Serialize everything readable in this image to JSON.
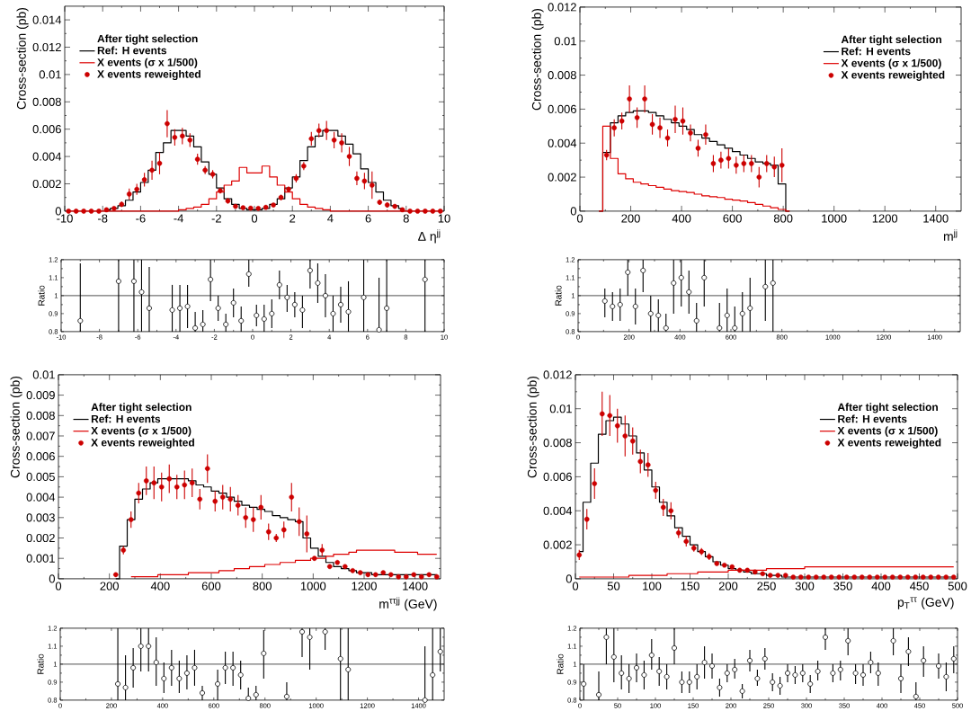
{
  "chart_data": [
    {
      "type": "step",
      "xlabel": "Δ η$^{jj}$",
      "ylabel": "Cross-section (pb)",
      "legend_title": "After tight selection",
      "legend": "top left",
      "xlim": [
        -10,
        10
      ],
      "ylim": [
        0,
        0.015
      ],
      "xticks": [
        -10,
        -8,
        -6,
        -4,
        -2,
        0,
        2,
        4,
        6,
        8,
        10
      ],
      "yticks": [
        0,
        0.002,
        0.004,
        0.006,
        0.008,
        0.01,
        0.012,
        0.014
      ],
      "x": [
        -9.8,
        -9.4,
        -9,
        -8.6,
        -8.2,
        -7.8,
        -7.4,
        -7,
        -6.6,
        -6.2,
        -5.8,
        -5.4,
        -5,
        -4.6,
        -4.2,
        -3.8,
        -3.4,
        -3,
        -2.6,
        -2.2,
        -1.8,
        -1.4,
        -1,
        -0.6,
        -0.2,
        0.2,
        0.6,
        1,
        1.4,
        1.8,
        2.2,
        2.6,
        3,
        3.4,
        3.8,
        4.2,
        4.6,
        5,
        5.4,
        5.8,
        6.2,
        6.6,
        7,
        7.4,
        7.8,
        8.2,
        8.6,
        9,
        9.4,
        9.8
      ],
      "series": [
        {
          "name": "Ref: H events",
          "color": "#000000",
          "type": "step",
          "values": [
            null,
            null,
            null,
            null,
            null,
            0.0001,
            0.0002,
            0.0004,
            0.0008,
            0.0014,
            0.0021,
            0.003,
            0.0043,
            0.005,
            0.0059,
            0.0059,
            0.0055,
            0.0047,
            0.0036,
            0.0027,
            0.0017,
            0.0009,
            0.0005,
            0.0002,
            0.0001,
            0.0001,
            0.0002,
            0.0005,
            0.0009,
            0.0017,
            0.0025,
            0.0037,
            0.0047,
            0.0055,
            0.0059,
            0.0059,
            0.0055,
            0.0049,
            0.0042,
            0.0031,
            0.0021,
            0.0014,
            0.0008,
            0.0004,
            0.0002,
            null,
            null,
            null,
            null,
            null
          ]
        },
        {
          "name": "X events (σ x 1/500)",
          "color": "#dd0000",
          "type": "step",
          "values": [
            0,
            0,
            0,
            0,
            0,
            0,
            0,
            0,
            0,
            0,
            0,
            0,
            0,
            0,
            0,
            0.0001,
            0.0002,
            0.0003,
            0.0005,
            0.0009,
            0.0014,
            0.0019,
            0.0022,
            0.0032,
            0.0028,
            0.0028,
            0.0033,
            0.0025,
            0.0019,
            0.0014,
            0.0009,
            0.0005,
            0.0003,
            0.0002,
            0.0001,
            0,
            0,
            0,
            0,
            0,
            0,
            0,
            0,
            0,
            0,
            0,
            0,
            0,
            0,
            0
          ]
        },
        {
          "name": "X events reweighted",
          "color": "#cc0000",
          "type": "scatter",
          "marker": "circle",
          "values": [
            0,
            0,
            0,
            0,
            0,
            0.0001,
            0.0002,
            0.0005,
            0.00125,
            0.0016,
            0.0023,
            0.003,
            0.0035,
            0.0064,
            0.0054,
            0.0055,
            0.0052,
            0.0038,
            0.003,
            0.0027,
            0.0015,
            0.00075,
            0.00035,
            0.00025,
            0.00022,
            0.0002,
            0.00028,
            0.00045,
            0.001,
            0.0016,
            0.0024,
            0.0033,
            0.0053,
            0.0059,
            0.0059,
            0.0052,
            0.005,
            0.004,
            0.0024,
            0.0022,
            0.0019,
            0.00065,
            0.00045,
            0.00035,
            0.0001,
            0,
            0,
            0,
            0,
            0
          ],
          "errors": [
            null,
            null,
            null,
            null,
            null,
            null,
            0.0001,
            0.0002,
            0.0004,
            0.0004,
            0.0005,
            0.0007,
            0.0008,
            0.001,
            0.0006,
            0.0006,
            0.0005,
            0.0004,
            0.0003,
            0.0003,
            0.0002,
            0.0002,
            0.0001,
            0.0001,
            0.0001,
            0.0001,
            0.0001,
            0.0001,
            0.0002,
            0.0002,
            0.0003,
            0.0003,
            0.0005,
            0.0005,
            0.0007,
            0.0006,
            0.0007,
            0.0007,
            0.0005,
            0.0006,
            0.001,
            0.0002,
            0.0002,
            0.0001,
            null,
            null,
            null,
            null,
            null,
            null
          ]
        }
      ]
    },
    {
      "type": "step",
      "xlabel": "m$^{jj}$",
      "ylabel": "Cross-section (pb)",
      "legend_title": "After tight selection",
      "legend": "top right",
      "xlim": [
        0,
        1500
      ],
      "ylim": [
        0,
        0.012
      ],
      "xticks": [
        0,
        200,
        400,
        600,
        800,
        1000,
        1200,
        1400
      ],
      "yticks": [
        0,
        0.002,
        0.004,
        0.006,
        0.008,
        0.01,
        0.012
      ],
      "x": [
        75,
        105,
        135,
        165,
        195,
        225,
        255,
        285,
        315,
        345,
        375,
        405,
        435,
        465,
        495,
        525,
        555,
        585,
        615,
        645,
        675,
        705,
        735,
        765,
        795,
        825
      ],
      "series": [
        {
          "name": "Ref: H events",
          "color": "#000000",
          "type": "step",
          "values": [
            0,
            0.00345,
            0.0052,
            0.0056,
            0.0058,
            0.0059,
            0.0059,
            0.0058,
            0.0056,
            0.0054,
            0.0052,
            0.005,
            0.0048,
            0.0045,
            0.0043,
            0.0041,
            0.0039,
            0.0037,
            0.0035,
            0.0033,
            0.0031,
            0.0029,
            0.0028,
            0.0027,
            0.0016,
            0
          ]
        },
        {
          "name": "X events (σ x 1/500)",
          "color": "#dd0000",
          "type": "step",
          "values": [
            0,
            0.005,
            0.0031,
            0.0022,
            0.0019,
            0.0017,
            0.0016,
            0.0015,
            0.0014,
            0.0013,
            0.0012,
            0.00115,
            0.0011,
            0.001,
            0.0009,
            0.00085,
            0.0008,
            0.0007,
            0.00065,
            0.0006,
            0.0005,
            0.0004,
            0.0003,
            0.0002,
            0.0001,
            0
          ]
        },
        {
          "name": "X events reweighted",
          "color": "#cc0000",
          "type": "scatter",
          "marker": "circle",
          "x": [
            105,
            135,
            165,
            195,
            225,
            255,
            285,
            315,
            345,
            375,
            405,
            435,
            465,
            495,
            525,
            555,
            585,
            615,
            645,
            675,
            705,
            735,
            765,
            795
          ],
          "values": [
            0.0033,
            0.0049,
            0.0053,
            0.0066,
            0.0055,
            0.0066,
            0.0051,
            0.0049,
            0.0043,
            0.0054,
            0.0053,
            0.0046,
            0.0037,
            0.0045,
            0.0028,
            0.003,
            0.0031,
            0.0027,
            0.0028,
            0.0028,
            0.002,
            0.0028,
            0.0026,
            0.0027
          ],
          "errors": [
            0.0003,
            0.0005,
            0.0005,
            0.0008,
            0.0006,
            0.0008,
            0.0006,
            0.0006,
            0.0005,
            0.0008,
            0.0008,
            0.0005,
            0.0005,
            0.0006,
            0.0005,
            0.0005,
            0.0006,
            0.0005,
            0.0005,
            0.0005,
            0.0006,
            0.0005,
            0.0006,
            0.001
          ]
        }
      ]
    },
    {
      "type": "scatter",
      "ylabel": "Ratio",
      "marker": "circle",
      "color": "#000000",
      "xlim": [
        -10,
        10
      ],
      "ylim": [
        0.8,
        1.2
      ],
      "xticks": [
        -10,
        -8,
        -6,
        -4,
        -2,
        0,
        2,
        4,
        6,
        8,
        10
      ],
      "yticks": [
        0.8,
        0.9,
        1,
        1.1,
        1.2
      ],
      "ref_lines": [
        {
          "axis": "y",
          "value": 1
        }
      ],
      "x": [
        -9,
        -7,
        -6.2,
        -5.8,
        -5.4,
        -4.2,
        -3.8,
        -3.4,
        -3,
        -2.6,
        -2.2,
        -1.8,
        -1.4,
        -1,
        -0.6,
        -0.2,
        0.2,
        0.6,
        1,
        1.4,
        1.8,
        2.2,
        2.6,
        3,
        3.4,
        3.8,
        4.2,
        4.6,
        5,
        5.8,
        6.6,
        7,
        9
      ],
      "values": [
        0.86,
        1.08,
        1.08,
        1.02,
        0.93,
        0.92,
        0.93,
        0.94,
        0.82,
        0.84,
        1.09,
        0.93,
        0.84,
        0.96,
        0.86,
        1.12,
        0.89,
        0.87,
        0.9,
        1.06,
        0.99,
        0.95,
        0.92,
        1.14,
        1.07,
        1.0,
        0.9,
        0.95,
        0.91,
        0.99,
        0.81,
        0.93,
        1.09
      ],
      "errors": [
        [
          0.8,
          1.18
        ],
        [
          0.8,
          1.2
        ],
        [
          0.8,
          1.2
        ],
        [
          0.8,
          1.2
        ],
        [
          0.8,
          1.16
        ],
        [
          0.8,
          1.06
        ],
        [
          0.8,
          1.06
        ],
        [
          0.82,
          1.06
        ],
        [
          0.8,
          0.91
        ],
        [
          0.8,
          0.92
        ],
        [
          0.97,
          1.2
        ],
        [
          0.86,
          1.0
        ],
        [
          0.8,
          0.9
        ],
        [
          0.88,
          1.04
        ],
        [
          0.8,
          0.94
        ],
        [
          1.05,
          1.2
        ],
        [
          0.83,
          0.95
        ],
        [
          0.8,
          0.95
        ],
        [
          0.82,
          0.98
        ],
        [
          0.98,
          1.14
        ],
        [
          0.91,
          1.06
        ],
        [
          0.88,
          1.02
        ],
        [
          0.82,
          1.0
        ],
        [
          1.04,
          1.2
        ],
        [
          0.96,
          1.18
        ],
        [
          0.88,
          1.12
        ],
        [
          0.8,
          1.0
        ],
        [
          0.85,
          1.05
        ],
        [
          0.8,
          1.08
        ],
        [
          0.8,
          1.2
        ],
        [
          0.8,
          1.1
        ],
        [
          0.8,
          1.2
        ],
        [
          0.8,
          1.2
        ]
      ]
    },
    {
      "type": "scatter",
      "ylabel": "Ratio",
      "marker": "circle",
      "color": "#000000",
      "xlim": [
        0,
        1500
      ],
      "ylim": [
        0.8,
        1.2
      ],
      "xticks": [
        0,
        200,
        400,
        600,
        800,
        1000,
        1200,
        1400
      ],
      "yticks": [
        0.8,
        0.9,
        1,
        1.1,
        1.2
      ],
      "ref_lines": [
        {
          "axis": "y",
          "value": 1
        }
      ],
      "x": [
        105,
        135,
        165,
        195,
        225,
        255,
        285,
        315,
        345,
        375,
        405,
        435,
        465,
        495,
        555,
        585,
        615,
        645,
        675,
        735,
        765
      ],
      "values": [
        0.97,
        0.94,
        0.95,
        1.13,
        0.94,
        1.14,
        0.9,
        0.89,
        0.82,
        1.07,
        1.1,
        1.02,
        0.86,
        1.1,
        0.82,
        0.89,
        0.82,
        0.9,
        0.93,
        1.05,
        1.07
      ],
      "errors": [
        [
          0.88,
          1.04
        ],
        [
          0.86,
          1.02
        ],
        [
          0.86,
          1.04
        ],
        [
          1.0,
          1.2
        ],
        [
          0.84,
          1.04
        ],
        [
          1.02,
          1.2
        ],
        [
          0.8,
          1.0
        ],
        [
          0.8,
          0.98
        ],
        [
          0.8,
          0.9
        ],
        [
          0.9,
          1.2
        ],
        [
          0.94,
          1.2
        ],
        [
          0.9,
          1.14
        ],
        [
          0.8,
          0.96
        ],
        [
          0.94,
          1.2
        ],
        [
          0.8,
          0.96
        ],
        [
          0.8,
          1.04
        ],
        [
          0.8,
          0.94
        ],
        [
          0.8,
          1.02
        ],
        [
          0.8,
          1.1
        ],
        [
          0.86,
          1.2
        ],
        [
          0.8,
          1.2
        ]
      ]
    },
    {
      "type": "step",
      "xlabel": "m$^{ττjj}$ (GeV)",
      "ylabel": "Cross-section (pb)",
      "legend_title": "After tight selection",
      "legend": "top left",
      "xlim": [
        0,
        1500
      ],
      "ylim": [
        0,
        0.01
      ],
      "xticks": [
        0,
        200,
        400,
        600,
        800,
        1000,
        1200,
        1400
      ],
      "yticks": [
        0,
        0.001,
        0.002,
        0.003,
        0.004,
        0.005,
        0.006,
        0.007,
        0.008,
        0.009,
        0.01
      ],
      "x": [
        225,
        255,
        285,
        315,
        345,
        375,
        405,
        435,
        465,
        495,
        525,
        555,
        585,
        615,
        645,
        675,
        705,
        735,
        765,
        795,
        825,
        855,
        885,
        915,
        945,
        975,
        1005,
        1035,
        1065,
        1095,
        1125,
        1155,
        1185,
        1215,
        1245,
        1275,
        1305,
        1335,
        1365,
        1395,
        1425,
        1455,
        1485
      ],
      "series": [
        {
          "name": "Ref: H events",
          "color": "#000000",
          "type": "step",
          "values": [
            0,
            0.0016,
            0.0029,
            0.0039,
            0.0044,
            0.0047,
            0.0049,
            0.0049,
            0.0049,
            0.0049,
            0.0048,
            0.0046,
            0.0045,
            0.0043,
            0.0042,
            0.004,
            0.0038,
            0.0036,
            0.0035,
            0.0034,
            0.0033,
            0.0031,
            0.003,
            0.0029,
            0.0028,
            0.002,
            0.0015,
            0.0011,
            0.0008,
            0.0006,
            0.0005,
            0.0004,
            0.0003,
            0.0003,
            0.0002,
            0.0002,
            0.0002,
            0.0002,
            0.0002,
            0.0002,
            0.0002,
            0.0002,
            0.0002
          ]
        },
        {
          "name": "X events (σ x 1/500)",
          "color": "#dd0000",
          "type": "step",
          "values": [
            null,
            null,
            0.0001,
            0.0001,
            0.0001,
            0.0001,
            0.0002,
            0.0002,
            0.0002,
            0.0002,
            0.0003,
            0.0003,
            0.0003,
            0.0003,
            0.0004,
            0.0004,
            0.0005,
            0.0005,
            0.0006,
            0.0006,
            0.0007,
            0.0007,
            0.0008,
            0.0008,
            0.0009,
            0.0009,
            0.001,
            0.001,
            0.0011,
            0.0012,
            0.0012,
            0.0013,
            0.0014,
            0.0014,
            0.0014,
            0.0014,
            0.0014,
            0.0013,
            0.0013,
            0.0013,
            0.0012,
            0.0012,
            0.0012
          ]
        },
        {
          "name": "X events reweighted",
          "color": "#cc0000",
          "type": "scatter",
          "marker": "circle",
          "values": [
            0.0002,
            0.0014,
            0.0029,
            0.0042,
            0.0048,
            0.0047,
            0.0045,
            0.0049,
            0.0045,
            0.0046,
            0.0047,
            0.0039,
            0.0054,
            0.0038,
            0.004,
            0.0039,
            0.0036,
            0.003,
            0.0029,
            0.0035,
            0.0023,
            0.002,
            0.0024,
            0.004,
            0.0028,
            0.0022,
            0.001,
            0.0014,
            0.0006,
            0.0008,
            0.0006,
            0.0004,
            0.0003,
            0.0002,
            0.0002,
            0.0003,
            0.0002,
            0.0001,
            0.0001,
            0.0002,
            0.0001,
            0.0002,
            0.0001
          ],
          "errors": [
            0.0001,
            0.0002,
            0.0004,
            0.0005,
            0.0007,
            0.0008,
            0.0007,
            0.0007,
            0.0006,
            0.0007,
            0.0007,
            0.0005,
            0.0007,
            0.0005,
            0.0006,
            0.0006,
            0.0005,
            0.0005,
            0.0006,
            0.0006,
            0.0004,
            0.0002,
            0.0004,
            0.0007,
            0.0007,
            0.0009,
            0.0001,
            0.0003,
            0.0001,
            0.0001,
            0.0001,
            null,
            null,
            null,
            null,
            null,
            null,
            null,
            null,
            null,
            null,
            null,
            null
          ]
        }
      ]
    },
    {
      "type": "step",
      "xlabel": "p$_{T}$$^{ττ}$ (GeV)",
      "ylabel": "Cross-section (pb)",
      "legend_title": "After tight selection",
      "legend": "top right",
      "xlim": [
        0,
        500
      ],
      "ylim": [
        0,
        0.012
      ],
      "xticks": [
        0,
        50,
        100,
        150,
        200,
        250,
        300,
        350,
        400,
        450,
        500
      ],
      "yticks": [
        0,
        0.002,
        0.004,
        0.006,
        0.008,
        0.01,
        0.012
      ],
      "x": [
        5,
        15,
        25,
        35,
        45,
        55,
        65,
        75,
        85,
        95,
        105,
        115,
        125,
        135,
        145,
        155,
        165,
        175,
        185,
        195,
        205,
        215,
        225,
        235,
        245,
        255,
        265,
        275,
        285,
        295,
        305,
        315,
        325,
        335,
        345,
        355,
        365,
        375,
        385,
        395,
        405,
        415,
        425,
        435,
        445,
        455,
        465,
        475,
        485,
        495
      ],
      "series": [
        {
          "name": "Ref: H events",
          "color": "#000000",
          "type": "step",
          "values": [
            0.0016,
            0.0045,
            0.0068,
            0.0085,
            0.0093,
            0.0095,
            0.0091,
            0.0084,
            0.0074,
            0.0064,
            0.0054,
            0.0045,
            0.0037,
            0.003,
            0.0025,
            0.002,
            0.0016,
            0.0013,
            0.001,
            0.0008,
            0.0006,
            0.0005,
            0.0004,
            0.0003,
            0.0003,
            0.0002,
            0.0002,
            0.0001,
            0.0001,
            0.0001,
            0.0001,
            0.0001,
            0.0001,
            0.0001,
            0.0001,
            0.0001,
            0.0001,
            0.0001,
            0.0001,
            0.0001,
            0.0001,
            0.0001,
            0.0001,
            0.0001,
            0.0001,
            0.0001,
            0.0001,
            0.0001,
            0.0001,
            0.0001
          ]
        },
        {
          "name": "X events (σ x 1/500)",
          "color": "#dd0000",
          "type": "step",
          "values": [
            0.0001,
            0.0001,
            0.0001,
            0.0001,
            0.0001,
            0.0001,
            0.0001,
            0.0002,
            0.0002,
            0.0002,
            0.0002,
            0.0002,
            0.0003,
            0.0003,
            0.0003,
            0.0003,
            0.0004,
            0.0004,
            0.0004,
            0.0004,
            0.0005,
            0.0005,
            0.0005,
            0.0005,
            0.0005,
            0.0006,
            0.0006,
            0.0006,
            0.0006,
            0.0006,
            0.0007,
            0.0007,
            0.0007,
            0.0007,
            0.0007,
            0.0007,
            0.0007,
            0.0007,
            0.0007,
            0.0007,
            0.0007,
            0.0007,
            0.0007,
            0.0007,
            0.0007,
            0.0007,
            0.0007,
            0.0007,
            0.0007,
            0.0007
          ]
        },
        {
          "name": "X events reweighted",
          "color": "#cc0000",
          "type": "scatter",
          "marker": "circle",
          "values": [
            0.0014,
            0.0035,
            0.0056,
            0.0097,
            0.0096,
            0.009,
            0.0084,
            0.0081,
            0.0069,
            0.0067,
            0.0052,
            0.0042,
            0.004,
            0.0027,
            0.0022,
            0.0018,
            0.0016,
            0.0013,
            0.0009,
            0.0008,
            0.0007,
            0.0005,
            0.0005,
            0.0004,
            0.0003,
            0.0002,
            0.0002,
            0.0002,
            0.0001,
            0.0001,
            0.0001,
            0.0001,
            0.0001,
            0.0001,
            0.0001,
            0.0001,
            0.0001,
            0.0001,
            0.0001,
            0.0001,
            0.0001,
            0.0001,
            0.0001,
            0.0001,
            0.0001,
            0.0001,
            0.0001,
            0.0001,
            0.0001,
            0.0001
          ],
          "errors": [
            0.0003,
            0.0006,
            0.0009,
            0.0013,
            0.0012,
            0.001,
            0.0012,
            0.0008,
            0.0007,
            0.0007,
            0.0005,
            0.0005,
            0.0005,
            0.0003,
            0.0003,
            0.0002,
            0.0002,
            0.0002,
            0.0001,
            0.0001,
            null,
            null,
            null,
            null,
            null,
            null,
            null,
            null,
            null,
            null,
            null,
            null,
            null,
            null,
            null,
            null,
            null,
            null,
            null,
            null,
            null,
            null,
            null,
            null,
            null,
            null,
            null,
            null,
            null,
            null
          ]
        }
      ]
    },
    {
      "type": "scatter",
      "ylabel": "Ratio",
      "marker": "circle",
      "color": "#000000",
      "xlim": [
        0,
        1500
      ],
      "ylim": [
        0.8,
        1.2
      ],
      "xticks": [
        0,
        200,
        400,
        600,
        800,
        1000,
        1200,
        1400
      ],
      "yticks": [
        0.8,
        0.9,
        1,
        1.1,
        1.2
      ],
      "ref_lines": [
        {
          "axis": "y",
          "value": 1
        }
      ],
      "x": [
        225,
        255,
        285,
        315,
        345,
        375,
        405,
        435,
        465,
        495,
        525,
        555,
        615,
        645,
        675,
        705,
        735,
        765,
        795,
        885,
        945,
        975,
        1035,
        1095,
        1125,
        1425,
        1455,
        1485
      ],
      "values": [
        0.89,
        0.87,
        0.98,
        1.1,
        1.1,
        1.01,
        0.92,
        0.98,
        0.92,
        0.95,
        0.98,
        0.84,
        0.89,
        0.98,
        0.98,
        0.94,
        0.81,
        0.83,
        1.06,
        0.82,
        1.18,
        1.15,
        1.18,
        1.03,
        0.97,
        0.8,
        0.94,
        1.07
      ],
      "errors": [
        [
          0.8,
          1.2
        ],
        [
          0.8,
          1.05
        ],
        [
          0.87,
          1.09
        ],
        [
          0.96,
          1.2
        ],
        [
          0.96,
          1.2
        ],
        [
          0.88,
          1.15
        ],
        [
          0.84,
          1.01
        ],
        [
          0.88,
          1.08
        ],
        [
          0.84,
          1.02
        ],
        [
          0.86,
          1.05
        ],
        [
          0.88,
          1.08
        ],
        [
          0.8,
          0.88
        ],
        [
          0.8,
          0.97
        ],
        [
          0.89,
          1.07
        ],
        [
          0.88,
          1.07
        ],
        [
          0.86,
          1.02
        ],
        [
          0.8,
          0.87
        ],
        [
          0.8,
          0.88
        ],
        [
          0.92,
          1.19
        ],
        [
          0.8,
          0.9
        ],
        [
          1.04,
          1.2
        ],
        [
          0.97,
          1.2
        ],
        [
          1.08,
          1.2
        ],
        [
          0.8,
          1.2
        ],
        [
          0.8,
          1.2
        ],
        [
          0.8,
          1.1
        ],
        [
          0.8,
          1.2
        ],
        [
          0.96,
          1.2
        ]
      ]
    },
    {
      "type": "scatter",
      "ylabel": "Ratio",
      "marker": "circle",
      "color": "#000000",
      "xlim": [
        0,
        500
      ],
      "ylim": [
        0.8,
        1.2
      ],
      "xticks": [
        0,
        50,
        100,
        150,
        200,
        250,
        300,
        350,
        400,
        450,
        500
      ],
      "yticks": [
        0.8,
        0.9,
        1,
        1.1,
        1.2
      ],
      "ref_lines": [
        {
          "axis": "y",
          "value": 1
        }
      ],
      "x": [
        5,
        25,
        35,
        45,
        55,
        65,
        75,
        85,
        95,
        105,
        115,
        125,
        135,
        145,
        155,
        165,
        175,
        185,
        195,
        205,
        215,
        225,
        235,
        245,
        255,
        265,
        275,
        285,
        295,
        305,
        315,
        325,
        335,
        345,
        355,
        365,
        375,
        385,
        395,
        415,
        425,
        435,
        445,
        455,
        475,
        485,
        495
      ],
      "values": [
        0.89,
        0.83,
        1.15,
        1.04,
        0.95,
        0.92,
        0.98,
        0.94,
        1.05,
        0.96,
        0.93,
        1.09,
        0.9,
        0.9,
        0.93,
        1.01,
        0.99,
        0.87,
        0.95,
        0.97,
        0.85,
        1.02,
        0.92,
        1.03,
        0.9,
        0.88,
        0.95,
        0.94,
        0.95,
        0.89,
        0.96,
        1.15,
        0.95,
        0.97,
        1.13,
        0.95,
        0.94,
        1.01,
        0.95,
        1.13,
        0.92,
        1.07,
        0.82,
        1.02,
        0.99,
        0.93,
        1.03
      ],
      "errors": [
        [
          0.8,
          1.0
        ],
        [
          0.8,
          0.96
        ],
        [
          1.0,
          1.2
        ],
        [
          0.9,
          1.2
        ],
        [
          0.86,
          1.05
        ],
        [
          0.84,
          1.0
        ],
        [
          0.9,
          1.06
        ],
        [
          0.86,
          1.02
        ],
        [
          0.97,
          1.14
        ],
        [
          0.88,
          1.04
        ],
        [
          0.86,
          1.0
        ],
        [
          1.0,
          1.2
        ],
        [
          0.84,
          0.96
        ],
        [
          0.84,
          0.96
        ],
        [
          0.86,
          1.0
        ],
        [
          0.92,
          1.1
        ],
        [
          0.92,
          1.06
        ],
        [
          0.82,
          0.92
        ],
        [
          0.9,
          1.0
        ],
        [
          0.92,
          1.03
        ],
        [
          0.81,
          0.89
        ],
        [
          0.96,
          1.08
        ],
        [
          0.88,
          0.97
        ],
        [
          0.97,
          1.09
        ],
        [
          0.85,
          0.95
        ],
        [
          0.83,
          0.93
        ],
        [
          0.9,
          1.0
        ],
        [
          0.89,
          0.99
        ],
        [
          0.9,
          1.0
        ],
        [
          0.84,
          0.94
        ],
        [
          0.91,
          1.02
        ],
        [
          1.08,
          1.2
        ],
        [
          0.9,
          1.0
        ],
        [
          0.91,
          1.02
        ],
        [
          1.05,
          1.2
        ],
        [
          0.89,
          1.0
        ],
        [
          0.88,
          1.0
        ],
        [
          0.95,
          1.07
        ],
        [
          0.88,
          1.01
        ],
        [
          1.05,
          1.2
        ],
        [
          0.84,
          1.0
        ],
        [
          0.99,
          1.15
        ],
        [
          0.8,
          0.9
        ],
        [
          0.93,
          1.1
        ],
        [
          0.92,
          1.06
        ],
        [
          0.85,
          1.01
        ],
        [
          0.95,
          1.1
        ]
      ]
    }
  ]
}
